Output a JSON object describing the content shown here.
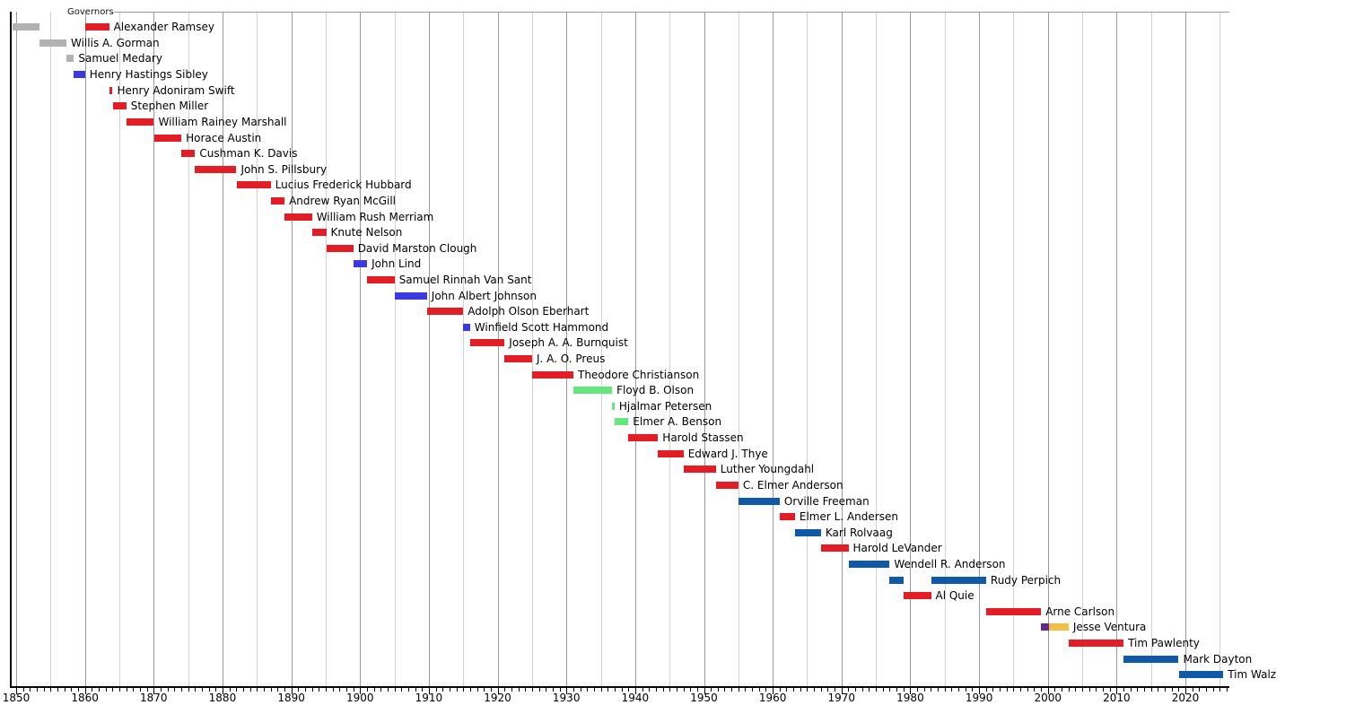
{
  "chart_data": {
    "type": "timeline-gantt",
    "title": "Governors",
    "subtitle": "",
    "xlabel": "",
    "ylabel": "",
    "x_axis": {
      "min_year": 1849,
      "max_year": 2026.5,
      "minor_tick_interval_years": 1,
      "grid_interval_years": 5,
      "decade_tick_labels": [
        "1850",
        "1860",
        "1870",
        "1880",
        "1890",
        "1900",
        "1910",
        "1920",
        "1930",
        "1940",
        "1950",
        "1960",
        "1970",
        "1980",
        "1990",
        "2000",
        "2010",
        "2020"
      ]
    },
    "legend_position": "none",
    "grid": "on",
    "colors": {
      "territorial": "#b2b2b2",
      "republican": "#e21d25",
      "democratic": "#3a3adf",
      "dfl": "#1059a9",
      "farmer_labor": "#66e77e",
      "reform": "#5f2b90",
      "independence": "#f3bd48",
      "grid_decade": "#9a9a9a",
      "grid_half_decade": "#d2d2d2",
      "axis": "#000000",
      "top_rule": "#999999"
    },
    "rows": [
      {
        "name": "Alexander Ramsey",
        "segments": [
          {
            "start": 1849.42,
            "end": 1853.37,
            "party": "territorial"
          },
          {
            "start": 1860.01,
            "end": 1863.52,
            "party": "republican"
          }
        ]
      },
      {
        "name": "Willis A. Gorman",
        "segments": [
          {
            "start": 1853.37,
            "end": 1857.31,
            "party": "territorial"
          }
        ]
      },
      {
        "name": "Samuel Medary",
        "segments": [
          {
            "start": 1857.31,
            "end": 1858.4,
            "party": "territorial"
          }
        ]
      },
      {
        "name": "Henry Hastings Sibley",
        "segments": [
          {
            "start": 1858.4,
            "end": 1860.01,
            "party": "democratic"
          }
        ]
      },
      {
        "name": "Henry Adoniram Swift",
        "segments": [
          {
            "start": 1863.52,
            "end": 1864.03,
            "party": "republican"
          }
        ]
      },
      {
        "name": "Stephen Miller",
        "segments": [
          {
            "start": 1864.03,
            "end": 1866.02,
            "party": "republican"
          }
        ]
      },
      {
        "name": "William Rainey Marshall",
        "segments": [
          {
            "start": 1866.02,
            "end": 1870.02,
            "party": "republican"
          }
        ]
      },
      {
        "name": "Horace Austin",
        "segments": [
          {
            "start": 1870.02,
            "end": 1874.02,
            "party": "republican"
          }
        ]
      },
      {
        "name": "Cushman K. Davis",
        "segments": [
          {
            "start": 1874.02,
            "end": 1876.02,
            "party": "republican"
          }
        ]
      },
      {
        "name": "John S. Pillsbury",
        "segments": [
          {
            "start": 1876.02,
            "end": 1882.03,
            "party": "republican"
          }
        ]
      },
      {
        "name": "Lucius Frederick Hubbard",
        "segments": [
          {
            "start": 1882.03,
            "end": 1887.01,
            "party": "republican"
          }
        ]
      },
      {
        "name": "Andrew Ryan McGill",
        "segments": [
          {
            "start": 1887.01,
            "end": 1889.02,
            "party": "republican"
          }
        ]
      },
      {
        "name": "William Rush Merriam",
        "segments": [
          {
            "start": 1889.02,
            "end": 1893.01,
            "party": "republican"
          }
        ]
      },
      {
        "name": "Knute Nelson",
        "segments": [
          {
            "start": 1893.01,
            "end": 1895.08,
            "party": "republican"
          }
        ]
      },
      {
        "name": "David Marston Clough",
        "segments": [
          {
            "start": 1895.08,
            "end": 1899.01,
            "party": "republican"
          }
        ]
      },
      {
        "name": "John Lind",
        "segments": [
          {
            "start": 1899.01,
            "end": 1901.02,
            "party": "democratic"
          }
        ]
      },
      {
        "name": "Samuel Rinnah Van Sant",
        "segments": [
          {
            "start": 1901.02,
            "end": 1905.01,
            "party": "republican"
          }
        ]
      },
      {
        "name": "John Albert Johnson",
        "segments": [
          {
            "start": 1905.01,
            "end": 1909.72,
            "party": "democratic"
          }
        ]
      },
      {
        "name": "Adolph Olson Eberhart",
        "segments": [
          {
            "start": 1909.72,
            "end": 1915.01,
            "party": "republican"
          }
        ]
      },
      {
        "name": "Winfield Scott Hammond",
        "segments": [
          {
            "start": 1915.01,
            "end": 1915.99,
            "party": "democratic"
          }
        ]
      },
      {
        "name": "Joseph A. A. Burnquist",
        "segments": [
          {
            "start": 1915.99,
            "end": 1921.01,
            "party": "republican"
          }
        ]
      },
      {
        "name": "J. A. O. Preus",
        "segments": [
          {
            "start": 1921.01,
            "end": 1925.02,
            "party": "republican"
          }
        ]
      },
      {
        "name": "Theodore Christianson",
        "segments": [
          {
            "start": 1925.02,
            "end": 1931.02,
            "party": "republican"
          }
        ]
      },
      {
        "name": "Floyd B. Olson",
        "segments": [
          {
            "start": 1931.02,
            "end": 1936.64,
            "party": "farmer_labor"
          }
        ]
      },
      {
        "name": "Hjalmar Petersen",
        "segments": [
          {
            "start": 1936.64,
            "end": 1937.01,
            "party": "farmer_labor"
          }
        ]
      },
      {
        "name": "Elmer A. Benson",
        "segments": [
          {
            "start": 1937.01,
            "end": 1939.01,
            "party": "farmer_labor"
          }
        ]
      },
      {
        "name": "Harold Stassen",
        "segments": [
          {
            "start": 1939.01,
            "end": 1943.32,
            "party": "republican"
          }
        ]
      },
      {
        "name": "Edward J. Thye",
        "segments": [
          {
            "start": 1943.32,
            "end": 1947.02,
            "party": "republican"
          }
        ]
      },
      {
        "name": "Luther Youngdahl",
        "segments": [
          {
            "start": 1947.02,
            "end": 1951.74,
            "party": "republican"
          }
        ]
      },
      {
        "name": "C. Elmer Anderson",
        "segments": [
          {
            "start": 1951.74,
            "end": 1955.01,
            "party": "republican"
          }
        ]
      },
      {
        "name": "Orville Freeman",
        "segments": [
          {
            "start": 1955.01,
            "end": 1961.01,
            "party": "dfl"
          }
        ]
      },
      {
        "name": "Elmer L. Andersen",
        "segments": [
          {
            "start": 1961.01,
            "end": 1963.23,
            "party": "republican"
          }
        ]
      },
      {
        "name": "Karl Rolvaag",
        "segments": [
          {
            "start": 1963.23,
            "end": 1967.01,
            "party": "dfl"
          }
        ]
      },
      {
        "name": "Harold LeVander",
        "segments": [
          {
            "start": 1967.01,
            "end": 1971.01,
            "party": "republican"
          }
        ]
      },
      {
        "name": "Wendell R. Anderson",
        "segments": [
          {
            "start": 1971.01,
            "end": 1976.99,
            "party": "dfl"
          }
        ]
      },
      {
        "name": "Rudy Perpich",
        "segments": [
          {
            "start": 1976.99,
            "end": 1979.01,
            "party": "dfl"
          },
          {
            "start": 1983.01,
            "end": 1991.02,
            "party": "dfl"
          }
        ]
      },
      {
        "name": "Al Quie",
        "segments": [
          {
            "start": 1979.01,
            "end": 1983.01,
            "party": "republican"
          }
        ]
      },
      {
        "name": "Arne Carlson",
        "segments": [
          {
            "start": 1991.02,
            "end": 1999.01,
            "party": "republican"
          }
        ]
      },
      {
        "name": "Jesse Ventura",
        "segments": [
          {
            "start": 1999.01,
            "end": 2000.12,
            "party": "reform"
          },
          {
            "start": 2000.12,
            "end": 2003.02,
            "party": "independence"
          }
        ]
      },
      {
        "name": "Tim Pawlenty",
        "segments": [
          {
            "start": 2003.02,
            "end": 2011.01,
            "party": "republican"
          }
        ]
      },
      {
        "name": "Mark Dayton",
        "segments": [
          {
            "start": 2011.01,
            "end": 2019.02,
            "party": "dfl"
          }
        ]
      },
      {
        "name": "Tim Walz",
        "segments": [
          {
            "start": 2019.02,
            "end": 2025.5,
            "party": "dfl"
          }
        ]
      }
    ]
  }
}
